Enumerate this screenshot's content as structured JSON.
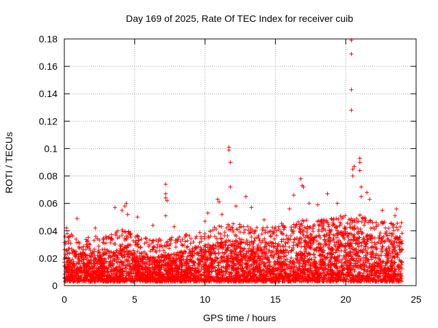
{
  "chart_data": {
    "type": "scatter",
    "title": "Day 169 of 2025, Rate Of TEC Index for receiver cuib",
    "xlabel": "GPS time / hours",
    "ylabel": "ROTI / TECUs",
    "xlim": [
      0,
      25
    ],
    "ylim": [
      0,
      0.18
    ],
    "x_ticks": [
      0,
      5,
      10,
      15,
      20,
      25
    ],
    "y_ticks": [
      0,
      0.02,
      0.04,
      0.06,
      0.08,
      0.1,
      0.12,
      0.14,
      0.16,
      0.18
    ],
    "x_tick_labels": [
      "0",
      "5",
      "10",
      "15",
      "20",
      "25"
    ],
    "y_tick_labels": [
      "0",
      "0.02",
      "0.04",
      "0.06",
      "0.08",
      "0.1",
      "0.12",
      "0.14",
      "0.16",
      "0.18"
    ],
    "grid": true,
    "marker": "+",
    "marker_color": "#ff0000",
    "data_range_hours": [
      0,
      24
    ],
    "series": [
      {
        "name": "ROTI",
        "color": "#ff0000",
        "baseline_envelope": {
          "x": [
            0,
            1,
            2,
            3,
            4,
            5,
            6,
            7,
            8,
            9,
            10,
            11,
            12,
            13,
            14,
            15,
            16,
            17,
            18,
            19,
            20,
            21,
            22,
            23,
            24
          ],
          "y_max": [
            0.028,
            0.026,
            0.024,
            0.024,
            0.03,
            0.026,
            0.022,
            0.022,
            0.024,
            0.026,
            0.028,
            0.032,
            0.034,
            0.032,
            0.03,
            0.032,
            0.036,
            0.036,
            0.036,
            0.038,
            0.04,
            0.04,
            0.036,
            0.034,
            0.034
          ]
        },
        "peaks": [
          {
            "x": 0.15,
            "y": 0.042
          },
          {
            "x": 0.2,
            "y": 0.038
          },
          {
            "x": 0.9,
            "y": 0.049
          },
          {
            "x": 2.2,
            "y": 0.042
          },
          {
            "x": 3.6,
            "y": 0.057
          },
          {
            "x": 4.1,
            "y": 0.055
          },
          {
            "x": 4.3,
            "y": 0.058
          },
          {
            "x": 4.4,
            "y": 0.06
          },
          {
            "x": 4.5,
            "y": 0.052
          },
          {
            "x": 5.2,
            "y": 0.05
          },
          {
            "x": 6.3,
            "y": 0.044
          },
          {
            "x": 7.2,
            "y": 0.074
          },
          {
            "x": 7.2,
            "y": 0.067
          },
          {
            "x": 7.2,
            "y": 0.064
          },
          {
            "x": 7.3,
            "y": 0.062
          },
          {
            "x": 7.2,
            "y": 0.051
          },
          {
            "x": 7.8,
            "y": 0.043
          },
          {
            "x": 10.0,
            "y": 0.047
          },
          {
            "x": 10.2,
            "y": 0.053
          },
          {
            "x": 10.9,
            "y": 0.063
          },
          {
            "x": 11.0,
            "y": 0.061
          },
          {
            "x": 11.2,
            "y": 0.052
          },
          {
            "x": 11.7,
            "y": 0.101
          },
          {
            "x": 11.7,
            "y": 0.099
          },
          {
            "x": 11.8,
            "y": 0.09
          },
          {
            "x": 11.8,
            "y": 0.072
          },
          {
            "x": 12.2,
            "y": 0.058
          },
          {
            "x": 12.9,
            "y": 0.065
          },
          {
            "x": 13.3,
            "y": 0.057
          },
          {
            "x": 14.2,
            "y": 0.048
          },
          {
            "x": 16.0,
            "y": 0.056
          },
          {
            "x": 16.3,
            "y": 0.066
          },
          {
            "x": 16.8,
            "y": 0.078
          },
          {
            "x": 16.9,
            "y": 0.073
          },
          {
            "x": 17.0,
            "y": 0.072
          },
          {
            "x": 17.4,
            "y": 0.06
          },
          {
            "x": 18.0,
            "y": 0.059
          },
          {
            "x": 18.7,
            "y": 0.067
          },
          {
            "x": 19.4,
            "y": 0.06
          },
          {
            "x": 20.4,
            "y": 0.179
          },
          {
            "x": 20.4,
            "y": 0.169
          },
          {
            "x": 20.4,
            "y": 0.143
          },
          {
            "x": 20.4,
            "y": 0.128
          },
          {
            "x": 20.5,
            "y": 0.085
          },
          {
            "x": 20.6,
            "y": 0.087
          },
          {
            "x": 20.5,
            "y": 0.08
          },
          {
            "x": 21.0,
            "y": 0.093
          },
          {
            "x": 21.0,
            "y": 0.09
          },
          {
            "x": 21.0,
            "y": 0.084
          },
          {
            "x": 21.1,
            "y": 0.072
          },
          {
            "x": 21.1,
            "y": 0.065
          },
          {
            "x": 21.5,
            "y": 0.068
          },
          {
            "x": 21.7,
            "y": 0.063
          },
          {
            "x": 22.6,
            "y": 0.055
          },
          {
            "x": 23.5,
            "y": 0.051
          },
          {
            "x": 23.6,
            "y": 0.056
          }
        ]
      }
    ]
  }
}
